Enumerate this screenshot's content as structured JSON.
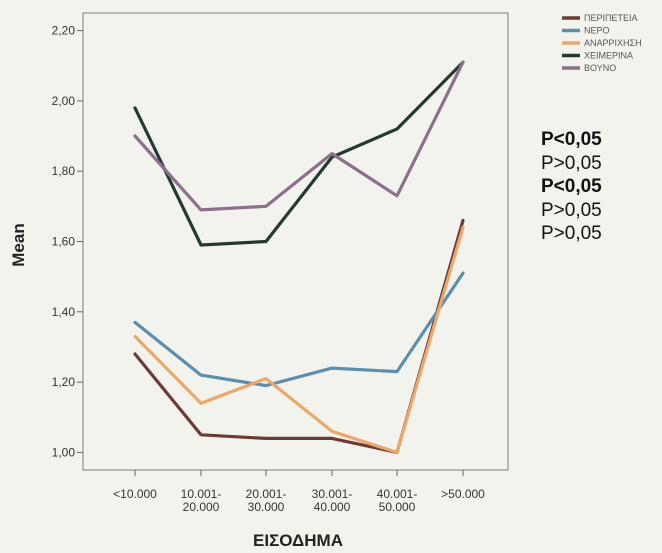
{
  "chart_data": {
    "type": "line",
    "xlabel": "ΕΙΣΟΔΗΜΑ",
    "ylabel": "Mean",
    "ylim": [
      0.95,
      2.25
    ],
    "yticks": [
      1.0,
      1.2,
      1.4,
      1.6,
      1.8,
      2.0,
      2.2
    ],
    "ytick_labels": [
      "1,00",
      "1,20",
      "1,40",
      "1,60",
      "1,80",
      "2,00",
      "2,20"
    ],
    "categories": [
      [
        "<10.000",
        ""
      ],
      [
        "10.001-",
        "20.000"
      ],
      [
        "20.001-",
        "30.000"
      ],
      [
        "30.001-",
        "40.000"
      ],
      [
        "40.001-",
        "50.000"
      ],
      [
        ">50.000",
        ""
      ]
    ],
    "grid": false,
    "legend_position": "top-right",
    "series": [
      {
        "name": "ΠΕΡΙΠΕΤΕΙΑ",
        "color": "#6e3a33",
        "values": [
          1.28,
          1.05,
          1.04,
          1.04,
          1.0,
          1.66
        ]
      },
      {
        "name": "ΝΕΡΟ",
        "color": "#5b8fb0",
        "values": [
          1.37,
          1.22,
          1.19,
          1.24,
          1.23,
          1.51
        ]
      },
      {
        "name": "ΑΝΑΡΡΙΧΗΣΗ",
        "color": "#eaa86a",
        "values": [
          1.33,
          1.14,
          1.21,
          1.06,
          1.0,
          1.64
        ]
      },
      {
        "name": "ΧΕΙΜΕΡΙΝΑ",
        "color": "#243a30",
        "values": [
          1.98,
          1.59,
          1.6,
          1.84,
          1.92,
          2.11
        ]
      },
      {
        "name": "ΒΟΥΝΟ",
        "color": "#8e6f8e",
        "values": [
          1.9,
          1.69,
          1.7,
          1.85,
          1.73,
          2.11
        ]
      }
    ]
  },
  "pvalues": [
    {
      "text": "P<0,05",
      "bold": true
    },
    {
      "text": "P>0,05",
      "bold": false
    },
    {
      "text": "P<0,05",
      "bold": true
    },
    {
      "text": "P>0,05",
      "bold": false
    },
    {
      "text": "P>0,05",
      "bold": false
    }
  ]
}
